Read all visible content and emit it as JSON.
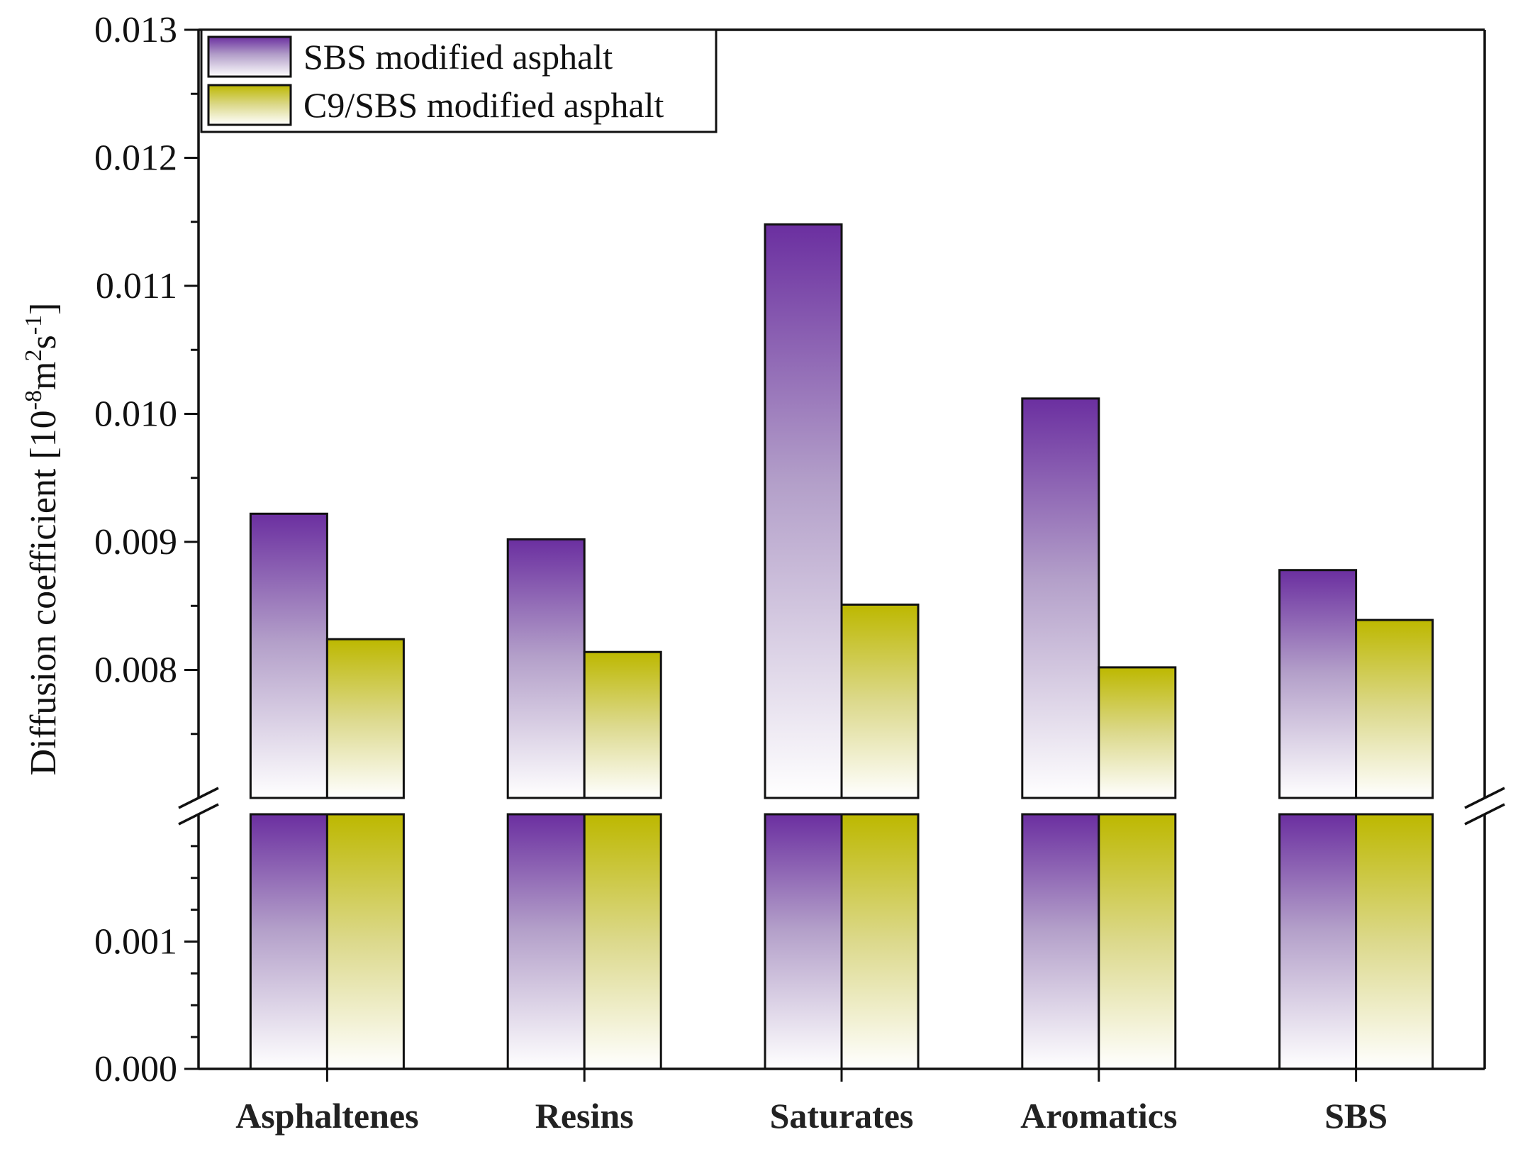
{
  "chart_data": {
    "type": "bar",
    "title": "",
    "xlabel": "",
    "ylabel": "Diffusion coefficient [10^-8 m^2 s^-1]",
    "ylabel_parts": {
      "prefix": "Diffusion coefficient [10",
      "exp1": "-8",
      "m": "m",
      "exp2": "2",
      "s": "s",
      "exp3": "-1",
      "suffix": "]"
    },
    "categories": [
      "Asphaltenes",
      "Resins",
      "Saturates",
      "Aromatics",
      "SBS"
    ],
    "series": [
      {
        "name": "SBS modified asphalt",
        "values": [
          0.00922,
          0.00902,
          0.01148,
          0.01012,
          0.00878
        ],
        "color": "#6b2fa0"
      },
      {
        "name": "C9/SBS modified asphalt",
        "values": [
          0.00824,
          0.00814,
          0.00851,
          0.00802,
          0.00839
        ],
        "color": "#bdb800"
      }
    ],
    "axis_break": {
      "lower_max": 0.002,
      "upper_min": 0.007
    },
    "ylim": [
      0,
      0.013
    ],
    "lower_ticks": [
      "0.000",
      "0.001"
    ],
    "upper_ticks": [
      "0.008",
      "0.009",
      "0.010",
      "0.011",
      "0.012",
      "0.013"
    ],
    "legend_position": "top-left",
    "grid": false
  }
}
